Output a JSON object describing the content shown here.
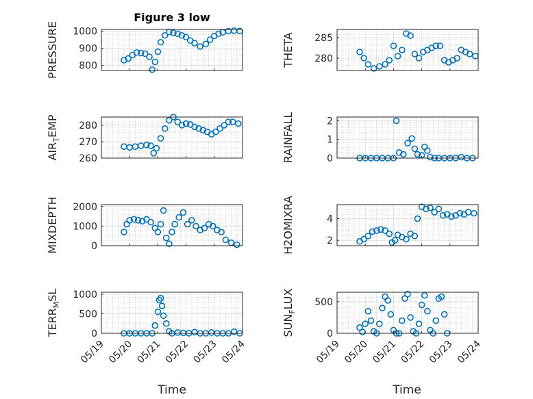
{
  "figure": {
    "title": "Figure 3 low",
    "xlabel": "Time"
  },
  "colors": {
    "marker": "#0072BD",
    "axis": "#262626",
    "grid": "#b0b0b0"
  },
  "x_tick_labels": [
    "05/19",
    "05/20",
    "05/21",
    "05/22",
    "05/23",
    "05/24"
  ],
  "chart_data": [
    {
      "type": "scatter",
      "id": "pressure",
      "ylabel": {
        "main": "PRESSURE"
      },
      "yticks": [
        800,
        900,
        1000
      ],
      "ylim": [
        770,
        1010
      ],
      "xlim": [
        0,
        5
      ],
      "grid": true,
      "marker": "open-circle",
      "x": [
        0.8,
        0.95,
        1.1,
        1.25,
        1.4,
        1.55,
        1.7,
        1.8,
        1.9,
        2.0,
        2.1,
        2.25,
        2.4,
        2.55,
        2.7,
        2.85,
        3.0,
        3.15,
        3.3,
        3.5,
        3.7,
        3.85,
        4.0,
        4.15,
        4.3,
        4.5,
        4.7,
        4.9
      ],
      "y": [
        830,
        840,
        860,
        875,
        872,
        868,
        850,
        775,
        820,
        880,
        935,
        975,
        995,
        990,
        985,
        975,
        965,
        945,
        930,
        910,
        925,
        950,
        972,
        985,
        993,
        1000,
        1003,
        1001
      ]
    },
    {
      "type": "scatter",
      "id": "theta",
      "ylabel": {
        "main": "THETA"
      },
      "yticks": [
        280,
        285
      ],
      "ylim": [
        277,
        287
      ],
      "xlim": [
        0,
        5
      ],
      "grid": true,
      "marker": "open-circle",
      "x": [
        0.8,
        0.95,
        1.1,
        1.3,
        1.5,
        1.7,
        1.85,
        2.0,
        2.15,
        2.3,
        2.45,
        2.6,
        2.75,
        2.9,
        3.05,
        3.2,
        3.35,
        3.5,
        3.65,
        3.8,
        3.95,
        4.1,
        4.25,
        4.4,
        4.55,
        4.7,
        4.9
      ],
      "y": [
        281.5,
        280,
        278.5,
        277.5,
        278,
        278.5,
        279.5,
        283,
        280.5,
        282,
        286,
        285.5,
        281,
        280,
        281.5,
        282,
        282.5,
        283,
        283,
        279.5,
        279,
        279.5,
        280,
        282,
        281.5,
        281,
        280.5
      ]
    },
    {
      "type": "scatter",
      "id": "air_temp",
      "ylabel": {
        "main": "AIR",
        "sub": "T",
        "rest": "EMP"
      },
      "yticks": [
        260,
        270,
        280
      ],
      "ylim": [
        260,
        285
      ],
      "xlim": [
        0,
        5
      ],
      "grid": true,
      "marker": "open-circle",
      "x": [
        0.8,
        1.0,
        1.2,
        1.4,
        1.6,
        1.75,
        1.85,
        1.95,
        2.1,
        2.25,
        2.4,
        2.55,
        2.7,
        2.85,
        3.0,
        3.15,
        3.3,
        3.45,
        3.6,
        3.75,
        3.9,
        4.05,
        4.2,
        4.35,
        4.5,
        4.65,
        4.85
      ],
      "y": [
        267,
        266.5,
        267,
        267.5,
        268,
        267.5,
        263,
        266,
        272,
        278,
        283,
        285,
        282,
        280,
        281,
        280.5,
        279,
        278,
        277,
        276,
        274.5,
        276,
        278,
        280,
        282,
        282,
        281
      ]
    },
    {
      "type": "scatter",
      "id": "rainfall",
      "ylabel": {
        "main": "RAINFALL"
      },
      "yticks": [
        0,
        1,
        2
      ],
      "ylim": [
        0,
        2.2
      ],
      "xlim": [
        0,
        5
      ],
      "grid": true,
      "marker": "open-circle",
      "x": [
        0.8,
        1.0,
        1.2,
        1.4,
        1.6,
        1.8,
        2.0,
        2.1,
        2.2,
        2.35,
        2.5,
        2.65,
        2.75,
        2.85,
        3.0,
        3.1,
        3.2,
        3.3,
        3.45,
        3.6,
        3.8,
        4.0,
        4.2,
        4.4,
        4.6,
        4.8
      ],
      "y": [
        0,
        0,
        0,
        0,
        0,
        0,
        0,
        2.0,
        0.3,
        0.2,
        0.8,
        1.05,
        0.5,
        0.2,
        0.15,
        0.6,
        0.4,
        0.05,
        0,
        0,
        0,
        0,
        0,
        0.05,
        0,
        0
      ]
    },
    {
      "type": "scatter",
      "id": "mixdepth",
      "ylabel": {
        "main": "MIXDEPTH"
      },
      "yticks": [
        0,
        1000,
        2000
      ],
      "ylim": [
        0,
        2100
      ],
      "xlim": [
        0,
        5
      ],
      "grid": true,
      "marker": "open-circle",
      "x": [
        0.8,
        0.9,
        1.0,
        1.15,
        1.3,
        1.45,
        1.6,
        1.75,
        1.9,
        2.0,
        2.1,
        2.2,
        2.3,
        2.4,
        2.5,
        2.6,
        2.75,
        2.9,
        3.05,
        3.2,
        3.35,
        3.5,
        3.65,
        3.8,
        3.95,
        4.1,
        4.25,
        4.4,
        4.6,
        4.8
      ],
      "y": [
        700,
        1100,
        1300,
        1350,
        1300,
        1250,
        1350,
        1200,
        900,
        700,
        1100,
        1800,
        400,
        100,
        700,
        1100,
        1450,
        1700,
        1100,
        1300,
        1000,
        800,
        900,
        1100,
        1000,
        800,
        700,
        300,
        150,
        50
      ]
    },
    {
      "type": "scatter",
      "id": "h2omixra",
      "ylabel": {
        "main": "H2OMIXRA"
      },
      "yticks": [
        2,
        4
      ],
      "ylim": [
        1.5,
        5.3
      ],
      "xlim": [
        0,
        5
      ],
      "grid": true,
      "marker": "open-circle",
      "x": [
        0.8,
        0.95,
        1.1,
        1.25,
        1.4,
        1.55,
        1.7,
        1.85,
        1.95,
        2.05,
        2.15,
        2.3,
        2.45,
        2.6,
        2.75,
        2.85,
        3.0,
        3.15,
        3.3,
        3.45,
        3.6,
        3.75,
        3.9,
        4.05,
        4.2,
        4.35,
        4.5,
        4.65,
        4.85
      ],
      "y": [
        1.9,
        2.1,
        2.4,
        2.8,
        2.9,
        3.0,
        2.9,
        2.6,
        1.8,
        2.0,
        2.5,
        2.3,
        2.1,
        2.6,
        2.4,
        4.0,
        5.1,
        4.9,
        5.0,
        4.6,
        4.9,
        4.3,
        4.4,
        4.2,
        4.3,
        4.5,
        4.4,
        4.6,
        4.5
      ]
    },
    {
      "type": "scatter",
      "id": "terrain_msl",
      "ylabel": {
        "main": "TERR",
        "sub": "M",
        "rest": "SL"
      },
      "yticks": [
        0,
        500,
        1000
      ],
      "ylim": [
        0,
        1050
      ],
      "xlim": [
        0,
        5
      ],
      "grid": true,
      "marker": "open-circle",
      "x": [
        0.8,
        1.0,
        1.2,
        1.4,
        1.6,
        1.8,
        1.9,
        2.0,
        2.05,
        2.1,
        2.15,
        2.2,
        2.3,
        2.4,
        2.5,
        2.7,
        2.9,
        3.1,
        3.3,
        3.5,
        3.7,
        3.9,
        4.1,
        4.3,
        4.5,
        4.7,
        4.9
      ],
      "y": [
        0,
        0,
        0,
        0,
        0,
        0,
        200,
        550,
        850,
        900,
        700,
        450,
        250,
        50,
        0,
        20,
        10,
        0,
        30,
        0,
        0,
        20,
        0,
        0,
        0,
        40,
        0
      ]
    },
    {
      "type": "scatter",
      "id": "sun_flux",
      "ylabel": {
        "main": "SUN",
        "sub": "F",
        "rest": "LUX"
      },
      "yticks": [
        0,
        500
      ],
      "ylim": [
        0,
        650
      ],
      "xlim": [
        0,
        5
      ],
      "grid": true,
      "marker": "open-circle",
      "x": [
        0.8,
        0.9,
        1.0,
        1.1,
        1.2,
        1.3,
        1.4,
        1.5,
        1.6,
        1.7,
        1.8,
        1.9,
        2.0,
        2.1,
        2.2,
        2.3,
        2.4,
        2.5,
        2.6,
        2.7,
        2.8,
        2.9,
        3.0,
        3.1,
        3.2,
        3.3,
        3.4,
        3.5,
        3.6,
        3.7,
        3.8,
        3.9
      ],
      "y": [
        90,
        20,
        150,
        350,
        200,
        30,
        0,
        150,
        400,
        580,
        520,
        300,
        50,
        0,
        0,
        200,
        550,
        620,
        250,
        30,
        0,
        150,
        450,
        600,
        350,
        50,
        0,
        200,
        550,
        580,
        300,
        0
      ]
    }
  ]
}
